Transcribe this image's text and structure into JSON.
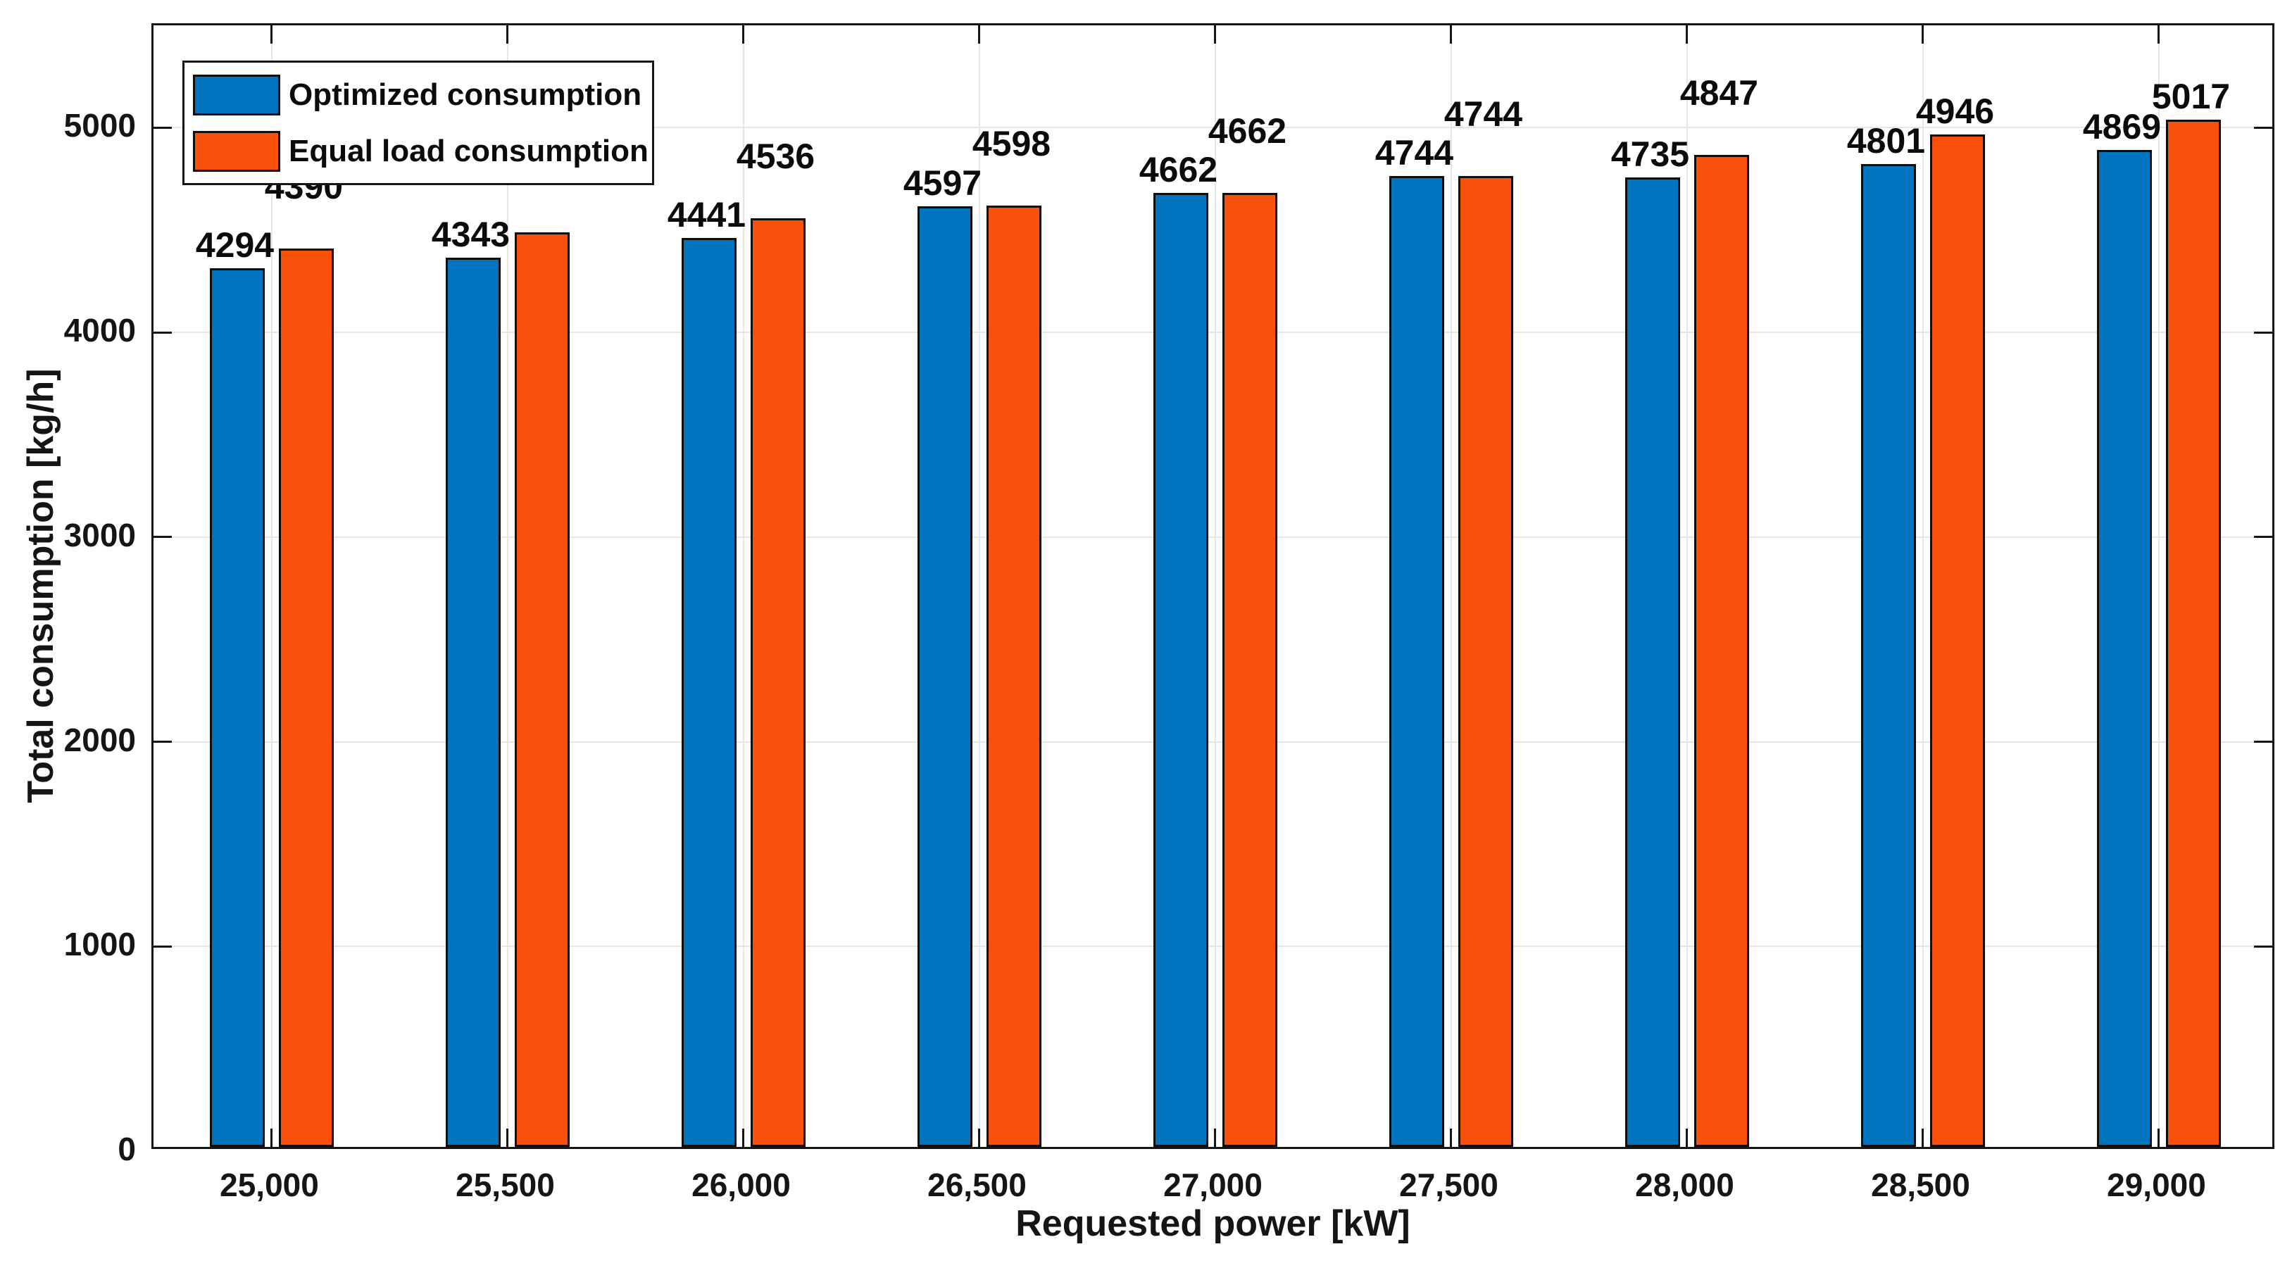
{
  "chart_data": {
    "type": "bar",
    "title": "",
    "xlabel": "Requested power [kW]",
    "ylabel": "Total consumption [kg/h]",
    "categories": [
      "25,000",
      "25,500",
      "26,000",
      "26,500",
      "27,000",
      "27,500",
      "28,000",
      "28,500",
      "29,000"
    ],
    "series": [
      {
        "name": "Optimized consumption",
        "color": "#0074BE",
        "values": [
          4294,
          4343,
          4441,
          4597,
          4662,
          4744,
          4735,
          4801,
          4869
        ]
      },
      {
        "name": "Equal load consumption",
        "color": "#F9500B",
        "values": [
          4390,
          4469,
          4536,
          4598,
          4662,
          4744,
          4847,
          4946,
          5017
        ]
      }
    ],
    "bar_labels_shown": true,
    "ylim": [
      0,
      5500
    ],
    "yticks": [
      0,
      1000,
      2000,
      3000,
      4000,
      5000
    ],
    "grid": "on",
    "legend_position": "top-left",
    "colors": {
      "axis": "#151515",
      "gridline": "#e6e6e6",
      "bar_edge": "#120d08",
      "background": "#ffffff"
    }
  }
}
